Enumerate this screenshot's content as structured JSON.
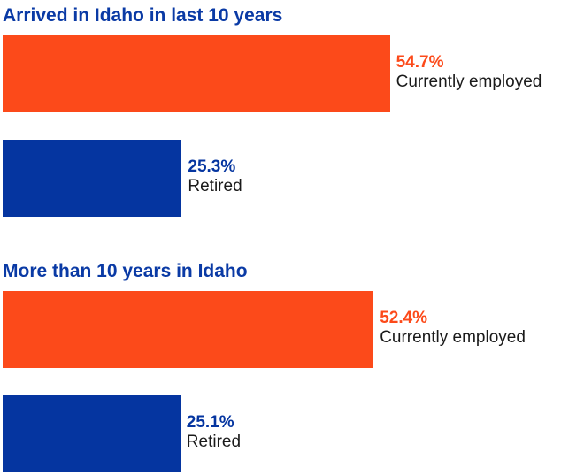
{
  "colors": {
    "employed": "#fc4a1a",
    "retired": "#0535a0",
    "title": "#0a3aa5"
  },
  "chart_data": [
    {
      "type": "bar",
      "orientation": "horizontal",
      "title": "Arrived in Idaho in last 10 years",
      "unit": "%",
      "categories": [
        "Currently employed",
        "Retired"
      ],
      "values": [
        54.7,
        25.3
      ],
      "value_labels": [
        "54.7%",
        "25.3%"
      ]
    },
    {
      "type": "bar",
      "orientation": "horizontal",
      "title": "More than 10 years in Idaho",
      "unit": "%",
      "categories": [
        "Currently employed",
        "Retired"
      ],
      "values": [
        52.4,
        25.1
      ],
      "value_labels": [
        "52.4%",
        "25.1%"
      ]
    }
  ]
}
